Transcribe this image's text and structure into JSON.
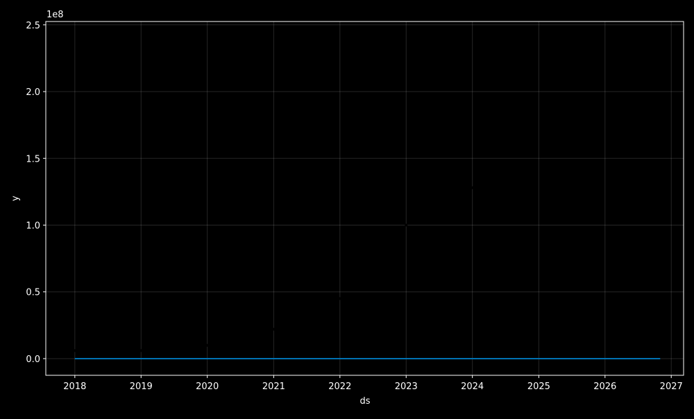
{
  "chart_data": {
    "type": "line",
    "title": "",
    "xlabel": "ds",
    "ylabel": "y",
    "y_offset_label": "1e8",
    "xlim": [
      "2017-07-25",
      "2027-03-10"
    ],
    "ylim": [
      -12500000,
      252500000
    ],
    "x_ticks": [
      {
        "date": "2018-01-01",
        "label": "2018"
      },
      {
        "date": "2019-01-01",
        "label": "2019"
      },
      {
        "date": "2020-01-01",
        "label": "2020"
      },
      {
        "date": "2021-01-01",
        "label": "2021"
      },
      {
        "date": "2022-01-01",
        "label": "2022"
      },
      {
        "date": "2023-01-01",
        "label": "2023"
      },
      {
        "date": "2024-01-01",
        "label": "2024"
      },
      {
        "date": "2025-01-01",
        "label": "2025"
      },
      {
        "date": "2026-01-01",
        "label": "2026"
      },
      {
        "date": "2027-01-01",
        "label": "2027"
      }
    ],
    "y_ticks": [
      {
        "value": 0,
        "label": "0.0"
      },
      {
        "value": 50000000,
        "label": "0.5"
      },
      {
        "value": 100000000,
        "label": "1.0"
      },
      {
        "value": 150000000,
        "label": "1.5"
      },
      {
        "value": 200000000,
        "label": "2.0"
      },
      {
        "value": 250000000,
        "label": "2.5"
      }
    ],
    "grid": true,
    "series": [
      {
        "kind": "line",
        "color": "#0072B2",
        "x": [
          "2018-01-01",
          "2026-11-01"
        ],
        "y": [
          0,
          0
        ]
      },
      {
        "kind": "scatter",
        "color": "#000000",
        "x": [
          "2018-01-01",
          "2019-01-01",
          "2020-01-01",
          "2021-01-01",
          "2022-01-01",
          "2023-01-01",
          "2024-01-01"
        ],
        "y": [
          6000000,
          6000000,
          10000000,
          22000000,
          45000000,
          100000000,
          128000000
        ]
      }
    ]
  }
}
